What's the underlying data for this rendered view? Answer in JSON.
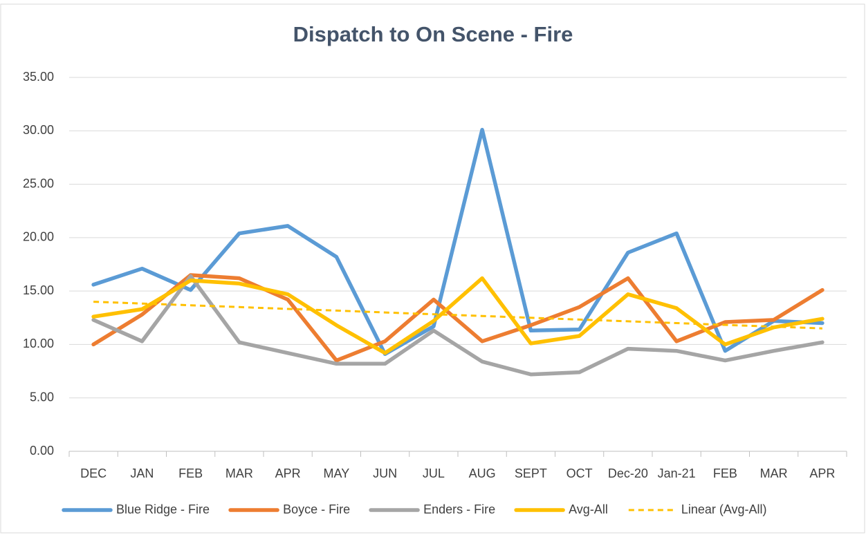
{
  "chart_data": {
    "type": "line",
    "title": "Dispatch to On Scene - Fire",
    "categories": [
      "DEC",
      "JAN",
      "FEB",
      "MAR",
      "APR",
      "MAY",
      "JUN",
      "JUL",
      "AUG",
      "SEPT",
      "OCT",
      "Dec-20",
      "Jan-21",
      "FEB",
      "MAR",
      "APR"
    ],
    "series": [
      {
        "name": "Blue Ridge - Fire",
        "color": "#5b9bd5",
        "values": [
          15.6,
          17.1,
          15.1,
          20.4,
          21.1,
          18.2,
          9.1,
          11.7,
          30.1,
          11.3,
          11.4,
          18.6,
          20.4,
          9.4,
          12.2,
          12.0
        ]
      },
      {
        "name": "Boyce - Fire",
        "color": "#ed7d31",
        "values": [
          10.0,
          12.8,
          16.5,
          16.2,
          14.2,
          8.5,
          10.3,
          14.2,
          10.3,
          11.8,
          13.5,
          16.2,
          10.3,
          12.1,
          12.3,
          15.1
        ]
      },
      {
        "name": "Enders - Fire",
        "color": "#a5a5a5",
        "values": [
          12.3,
          10.3,
          16.4,
          10.2,
          9.2,
          8.2,
          8.2,
          11.3,
          8.4,
          7.2,
          7.4,
          9.6,
          9.4,
          8.5,
          9.4,
          10.2
        ]
      },
      {
        "name": "Avg-All",
        "color": "#ffc000",
        "values": [
          12.6,
          13.3,
          16.0,
          15.7,
          14.7,
          11.8,
          9.2,
          12.2,
          16.2,
          10.1,
          10.8,
          14.7,
          13.4,
          10.0,
          11.6,
          12.4
        ]
      },
      {
        "name": "Linear (Avg-All)",
        "color": "#ffc000",
        "dash": true,
        "values": [
          14.0,
          13.83,
          13.67,
          13.5,
          13.33,
          13.17,
          13.0,
          12.83,
          12.67,
          12.5,
          12.33,
          12.17,
          12.0,
          11.83,
          11.67,
          11.5
        ]
      }
    ],
    "ylim": [
      0,
      35
    ],
    "yticks": [
      {
        "value": 0,
        "label": "0.00"
      },
      {
        "value": 5,
        "label": "5.00"
      },
      {
        "value": 10,
        "label": "10.00"
      },
      {
        "value": 15,
        "label": "15.00"
      },
      {
        "value": 20,
        "label": "20.00"
      },
      {
        "value": 25,
        "label": "25.00"
      },
      {
        "value": 30,
        "label": "30.00"
      },
      {
        "value": 35,
        "label": "35.00"
      }
    ],
    "grid": true,
    "legend": "bottom"
  }
}
